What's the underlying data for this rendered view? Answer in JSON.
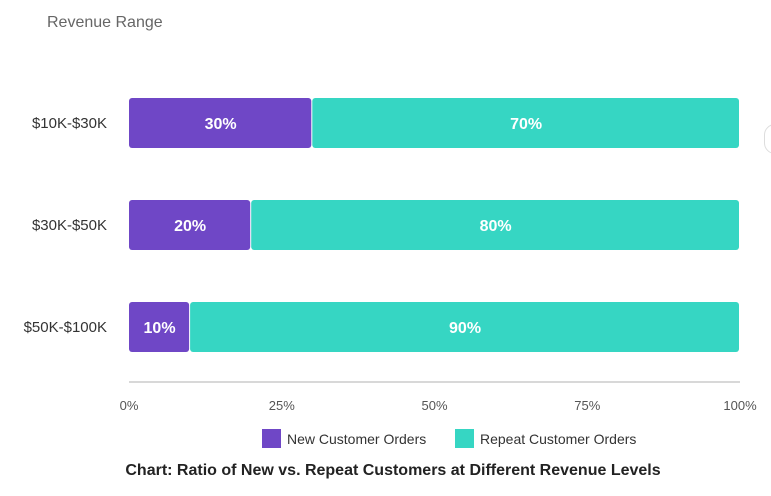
{
  "chart_data": {
    "type": "bar",
    "orientation": "horizontal",
    "stacked": true,
    "ylabel": "Revenue Range",
    "categories": [
      "$10K-$30K",
      "$30K-$50K",
      "$50K-$100K"
    ],
    "series": [
      {
        "name": "New Customer Orders",
        "color": "#6f47c6",
        "values": [
          30,
          20,
          10
        ],
        "value_labels": [
          "30%",
          "20%",
          "10%"
        ]
      },
      {
        "name": "Repeat Customer Orders",
        "color": "#36d6c3",
        "values": [
          70,
          80,
          90
        ],
        "value_labels": [
          "70%",
          "80%",
          "90%"
        ]
      }
    ],
    "xlim": [
      0,
      100
    ],
    "x_ticks": [
      0,
      25,
      50,
      75,
      100
    ],
    "x_tick_labels": [
      "0%",
      "25%",
      "50%",
      "75%",
      "100%"
    ],
    "legend_position": "bottom",
    "caption": "Chart: Ratio of New vs. Repeat Customers at Different Revenue Levels"
  }
}
